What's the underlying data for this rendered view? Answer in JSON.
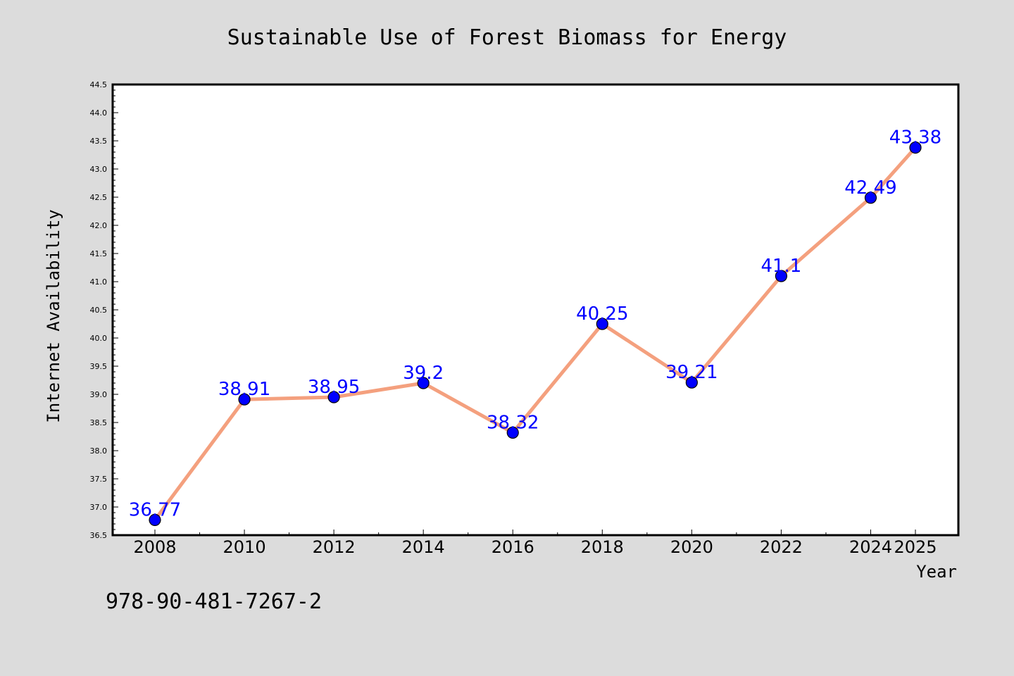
{
  "chart_data": {
    "type": "line",
    "title": "Sustainable Use of Forest Biomass for Energy",
    "xlabel": "Year",
    "ylabel": "Internet Availability",
    "x": [
      "2008",
      "2010",
      "2012",
      "2014",
      "2016",
      "2018",
      "2020",
      "2022",
      "2024",
      "2025"
    ],
    "series": [
      {
        "values": [
          36.77,
          38.91,
          38.95,
          39.2,
          38.32,
          40.25,
          39.21,
          41.1,
          42.49,
          43.38
        ],
        "labels": [
          "36.77",
          "38.91",
          "38.95",
          "39.2",
          "38.32",
          "40.25",
          "39.21",
          "41.1",
          "42.49",
          "43.38"
        ],
        "line_color": "#f4a07e",
        "marker_color": "#0000ff"
      }
    ],
    "ylim": [
      36.5,
      44.5
    ],
    "yticks": [
      "36.5",
      "37.0",
      "37.5",
      "38.0",
      "38.5",
      "39.0",
      "39.5",
      "40.0",
      "40.5",
      "41.0",
      "41.5",
      "42.0",
      "42.5",
      "43.0",
      "43.5",
      "44.0",
      "44.5"
    ],
    "grid": false,
    "annotation": "978-90-481-7267-2"
  },
  "colors": {
    "background": "#dcdcdc",
    "plot_area": "#ffffff",
    "line": "#f4a07e",
    "marker": "#0000ff",
    "data_label": "#0000ff"
  }
}
